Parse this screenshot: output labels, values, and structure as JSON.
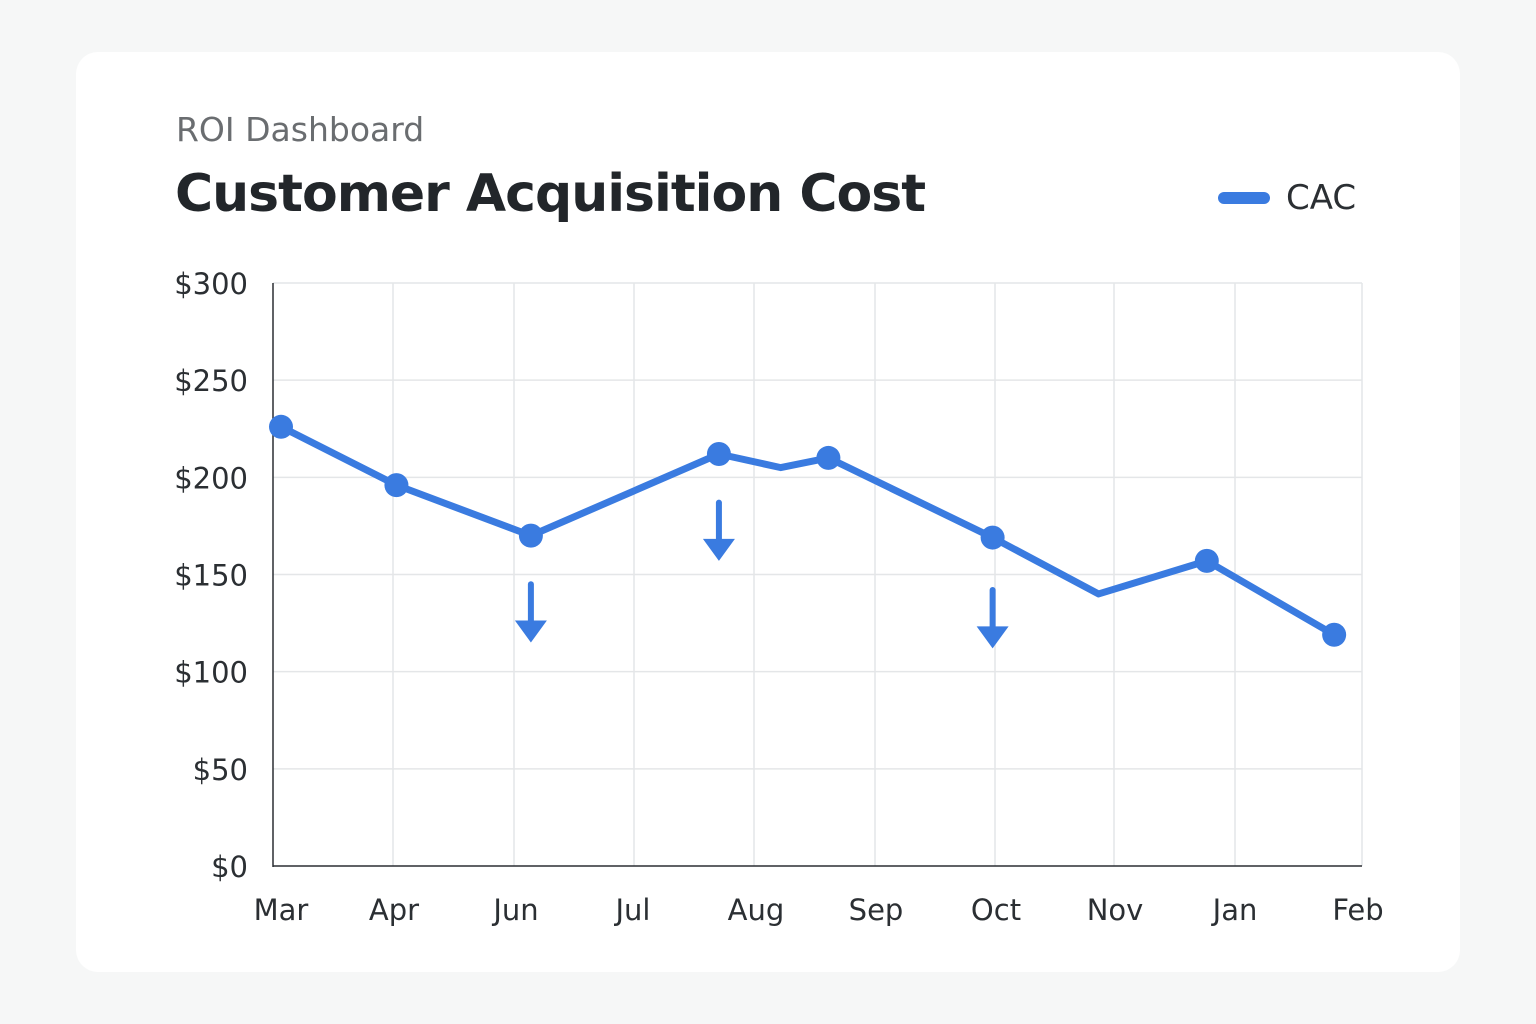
{
  "header": {
    "subtitle": "ROI Dashboard",
    "title": "Customer Acquisition Cost"
  },
  "colors": {
    "series": "#3a7be0",
    "grid": "#e4e6e8",
    "axis": "#2b2f33"
  },
  "chart_data": {
    "type": "line",
    "title": "Customer Acquisition Cost",
    "xlabel": "",
    "ylabel": "",
    "categories": [
      "Mar",
      "Apr",
      "Jun",
      "Jul",
      "Aug",
      "Sep",
      "Oct",
      "Nov",
      "Jan",
      "Feb"
    ],
    "ylim": [
      0,
      300
    ],
    "yticks": [
      "$0",
      "$50",
      "$100",
      "$150",
      "$200",
      "$250",
      "$300"
    ],
    "grid": true,
    "legend_position": "top-right",
    "series": [
      {
        "name": "CAC",
        "points": [
          {
            "x": 0.0,
            "y": 226,
            "marker": true
          },
          {
            "x": 0.97,
            "y": 196,
            "marker": true
          },
          {
            "x": 2.1,
            "y": 170,
            "marker": true
          },
          {
            "x": 3.68,
            "y": 212,
            "marker": true
          },
          {
            "x": 4.2,
            "y": 205,
            "marker": false
          },
          {
            "x": 4.6,
            "y": 210,
            "marker": true
          },
          {
            "x": 5.98,
            "y": 169,
            "marker": true
          },
          {
            "x": 6.87,
            "y": 140,
            "marker": false
          },
          {
            "x": 7.78,
            "y": 157,
            "marker": true
          },
          {
            "x": 8.85,
            "y": 119,
            "marker": true
          }
        ]
      }
    ],
    "annotations": [
      {
        "type": "down-arrow",
        "x": 2.1,
        "y_top": 145,
        "y_bottom": 115
      },
      {
        "type": "down-arrow",
        "x": 3.68,
        "y_top": 187,
        "y_bottom": 157
      },
      {
        "type": "down-arrow",
        "x": 5.98,
        "y_top": 142,
        "y_bottom": 112
      }
    ]
  }
}
